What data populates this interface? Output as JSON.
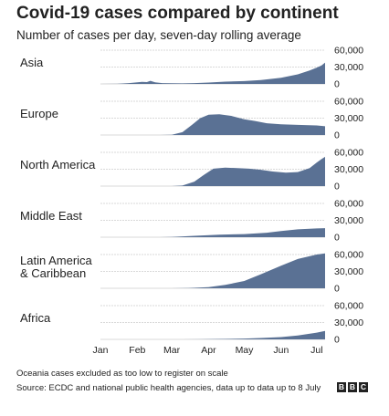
{
  "header": {
    "title": "Covid-19 cases compared by continent",
    "subtitle": "Number of cases per day, seven-day rolling average"
  },
  "footer": {
    "note": "Oceania cases excluded as too low to register on scale",
    "source": "Source: ECDC and national public health agencies, data up to data up to 8 July",
    "logo_letters": [
      "B",
      "B",
      "C"
    ]
  },
  "colors": {
    "area": "#5a7194",
    "grid": "#d9d9d9",
    "text": "#222222"
  },
  "chart_data": {
    "type": "area",
    "x_ticks": [
      "Jan",
      "Feb",
      "Mar",
      "Apr",
      "May",
      "Jun",
      "Jul"
    ],
    "x_tick_dates": [
      "2020-01-01",
      "2020-02-01",
      "2020-03-01",
      "2020-04-01",
      "2020-05-01",
      "2020-06-01",
      "2020-07-01"
    ],
    "x_range": [
      "2020-01-01",
      "2020-07-08"
    ],
    "y_ticks": [
      0,
      30000,
      60000
    ],
    "y_tick_labels": [
      "0",
      "30,000",
      "60,000"
    ],
    "ylim": [
      0,
      60000
    ],
    "grid": true,
    "series": [
      {
        "name": "Asia",
        "label_lines": [
          "Asia"
        ],
        "points": [
          [
            "2020-01-01",
            0
          ],
          [
            "2020-01-15",
            200
          ],
          [
            "2020-01-25",
            1500
          ],
          [
            "2020-02-01",
            3000
          ],
          [
            "2020-02-05",
            3500
          ],
          [
            "2020-02-09",
            3200
          ],
          [
            "2020-02-12",
            5500
          ],
          [
            "2020-02-16",
            3000
          ],
          [
            "2020-02-22",
            1500
          ],
          [
            "2020-03-01",
            1200
          ],
          [
            "2020-03-10",
            1000
          ],
          [
            "2020-03-20",
            1500
          ],
          [
            "2020-04-01",
            2500
          ],
          [
            "2020-04-15",
            4000
          ],
          [
            "2020-05-01",
            5000
          ],
          [
            "2020-05-15",
            7000
          ],
          [
            "2020-06-01",
            11000
          ],
          [
            "2020-06-15",
            17000
          ],
          [
            "2020-06-25",
            24000
          ],
          [
            "2020-07-01",
            29000
          ],
          [
            "2020-07-05",
            33000
          ],
          [
            "2020-07-08",
            38000
          ]
        ]
      },
      {
        "name": "Europe",
        "label_lines": [
          "Europe"
        ],
        "points": [
          [
            "2020-01-01",
            0
          ],
          [
            "2020-02-20",
            0
          ],
          [
            "2020-03-01",
            500
          ],
          [
            "2020-03-10",
            5000
          ],
          [
            "2020-03-18",
            18000
          ],
          [
            "2020-03-25",
            30000
          ],
          [
            "2020-04-01",
            36000
          ],
          [
            "2020-04-10",
            37000
          ],
          [
            "2020-04-20",
            34000
          ],
          [
            "2020-05-01",
            28000
          ],
          [
            "2020-05-10",
            25000
          ],
          [
            "2020-05-20",
            21000
          ],
          [
            "2020-06-01",
            19000
          ],
          [
            "2020-06-15",
            18000
          ],
          [
            "2020-07-01",
            17000
          ],
          [
            "2020-07-08",
            15500
          ]
        ]
      },
      {
        "name": "North America",
        "label_lines": [
          "North America"
        ],
        "points": [
          [
            "2020-01-01",
            0
          ],
          [
            "2020-03-01",
            0
          ],
          [
            "2020-03-10",
            1000
          ],
          [
            "2020-03-20",
            8000
          ],
          [
            "2020-03-28",
            20000
          ],
          [
            "2020-04-05",
            31000
          ],
          [
            "2020-04-15",
            33000
          ],
          [
            "2020-04-25",
            32000
          ],
          [
            "2020-05-05",
            31000
          ],
          [
            "2020-05-15",
            29000
          ],
          [
            "2020-05-25",
            26000
          ],
          [
            "2020-06-05",
            24000
          ],
          [
            "2020-06-15",
            25000
          ],
          [
            "2020-06-25",
            32000
          ],
          [
            "2020-07-01",
            42000
          ],
          [
            "2020-07-05",
            48000
          ],
          [
            "2020-07-08",
            52000
          ]
        ]
      },
      {
        "name": "Middle East",
        "label_lines": [
          "Middle East"
        ],
        "points": [
          [
            "2020-01-01",
            0
          ],
          [
            "2020-02-20",
            0
          ],
          [
            "2020-03-01",
            500
          ],
          [
            "2020-03-20",
            2500
          ],
          [
            "2020-04-10",
            4500
          ],
          [
            "2020-05-01",
            5500
          ],
          [
            "2020-05-20",
            8000
          ],
          [
            "2020-06-01",
            11000
          ],
          [
            "2020-06-15",
            14000
          ],
          [
            "2020-07-01",
            15500
          ],
          [
            "2020-07-08",
            16000
          ]
        ]
      },
      {
        "name": "Latin America & Caribbean",
        "label_lines": [
          "Latin America",
          "& Caribbean"
        ],
        "points": [
          [
            "2020-01-01",
            0
          ],
          [
            "2020-03-01",
            0
          ],
          [
            "2020-03-15",
            500
          ],
          [
            "2020-04-01",
            2000
          ],
          [
            "2020-04-15",
            6000
          ],
          [
            "2020-05-01",
            13000
          ],
          [
            "2020-05-15",
            25000
          ],
          [
            "2020-06-01",
            40000
          ],
          [
            "2020-06-15",
            52000
          ],
          [
            "2020-07-01",
            60000
          ],
          [
            "2020-07-08",
            62000
          ]
        ]
      },
      {
        "name": "Africa",
        "label_lines": [
          "Africa"
        ],
        "points": [
          [
            "2020-01-01",
            0
          ],
          [
            "2020-03-10",
            0
          ],
          [
            "2020-03-25",
            200
          ],
          [
            "2020-04-15",
            800
          ],
          [
            "2020-05-01",
            1500
          ],
          [
            "2020-05-15",
            2500
          ],
          [
            "2020-06-01",
            4000
          ],
          [
            "2020-06-15",
            7000
          ],
          [
            "2020-07-01",
            12000
          ],
          [
            "2020-07-08",
            15000
          ]
        ]
      }
    ]
  }
}
